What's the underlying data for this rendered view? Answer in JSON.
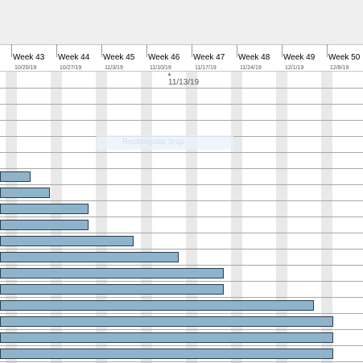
{
  "weeks": [
    {
      "label": "Week 43",
      "date": "10/20/19"
    },
    {
      "label": "Week 44",
      "date": "10/27/19"
    },
    {
      "label": "Week 45",
      "date": "11/3/19"
    },
    {
      "label": "Week 46",
      "date": "11/10/19"
    },
    {
      "label": "Week 47",
      "date": "11/17/19"
    },
    {
      "label": "Week 48",
      "date": "11/24/19"
    },
    {
      "label": "Week 49",
      "date": "12/1/19"
    },
    {
      "label": "Week 50",
      "date": "12/8/19"
    }
  ],
  "today": {
    "marker": "▲",
    "date": "11/13/19"
  },
  "snip_overlay": {
    "label": "Rectangular Snip"
  },
  "colors": {
    "bar_fill": "#8eb4cb",
    "bar_border": "#2c3e4b",
    "weekend": "#e9e9e9",
    "grid": "#a8a8a8"
  },
  "tasks": [
    {
      "end": null
    },
    {
      "end": null
    },
    {
      "end": null
    },
    {
      "end": null
    },
    {
      "end": null
    },
    {
      "end": null
    },
    {
      "end": "10/23/19"
    },
    {
      "end": "10/26/19"
    },
    {
      "end": "11/1/19"
    },
    {
      "end": "11/1/19"
    },
    {
      "end": "11/8/19"
    },
    {
      "end": "11/15/19"
    },
    {
      "end": "11/22/19"
    },
    {
      "end": "11/22/19"
    },
    {
      "end": "12/6/19"
    },
    {
      "end": "12/9/19"
    },
    {
      "end": "12/9/19"
    },
    {
      "end": "12/9/19"
    }
  ]
}
